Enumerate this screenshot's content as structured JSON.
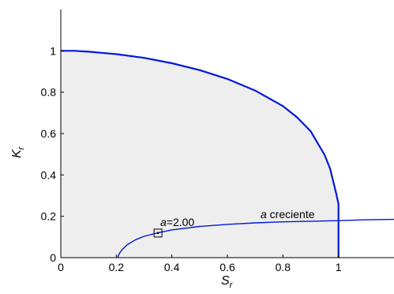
{
  "chart_data": {
    "type": "line",
    "xlabel": {
      "main": "S",
      "sub": "r"
    },
    "ylabel": {
      "main": "K",
      "sub": "r"
    },
    "xlim": [
      0,
      1.2
    ],
    "ylim": [
      0,
      1.2
    ],
    "xticks": [
      0,
      0.2,
      0.4,
      0.6,
      0.8,
      1
    ],
    "xtick_labels": [
      "0",
      "0.2",
      "0.4",
      "0.6",
      "0.8",
      "1"
    ],
    "yticks": [
      0,
      0.2,
      0.4,
      0.6,
      0.8,
      1
    ],
    "ytick_labels": [
      "0",
      "0.2",
      "0.4",
      "0.6",
      "0.8",
      "1"
    ],
    "grid": false,
    "colors": {
      "line": "#0018d8",
      "region_fill": "#eeeeee",
      "axes": "#000000"
    },
    "series": [
      {
        "role": "boundary",
        "x": [
          0,
          0.05,
          0.1,
          0.2,
          0.3,
          0.4,
          0.5,
          0.6,
          0.7,
          0.8,
          0.85,
          0.9,
          0.95,
          0.97,
          0.99,
          1.0,
          1.0
        ],
        "y": [
          1.0,
          1.0,
          0.996,
          0.984,
          0.966,
          0.94,
          0.907,
          0.864,
          0.808,
          0.733,
          0.68,
          0.611,
          0.497,
          0.43,
          0.32,
          0.26,
          0.0
        ]
      },
      {
        "role": "trajectory",
        "x": [
          0.205,
          0.21,
          0.22,
          0.24,
          0.27,
          0.3,
          0.35,
          0.4,
          0.5,
          0.6,
          0.7,
          0.8,
          0.9,
          1.0,
          1.1,
          1.2
        ],
        "y": [
          0.0,
          0.018,
          0.038,
          0.063,
          0.087,
          0.103,
          0.12,
          0.134,
          0.151,
          0.161,
          0.168,
          0.173,
          0.176,
          0.179,
          0.183,
          0.185
        ]
      }
    ],
    "marker": {
      "x": 0.35,
      "y": 0.119,
      "label_italic": "a",
      "label_rest": "=2.00"
    },
    "annotation": {
      "x": 0.75,
      "y": 0.2,
      "label_italic": "a",
      "label_rest": " creciente"
    }
  }
}
